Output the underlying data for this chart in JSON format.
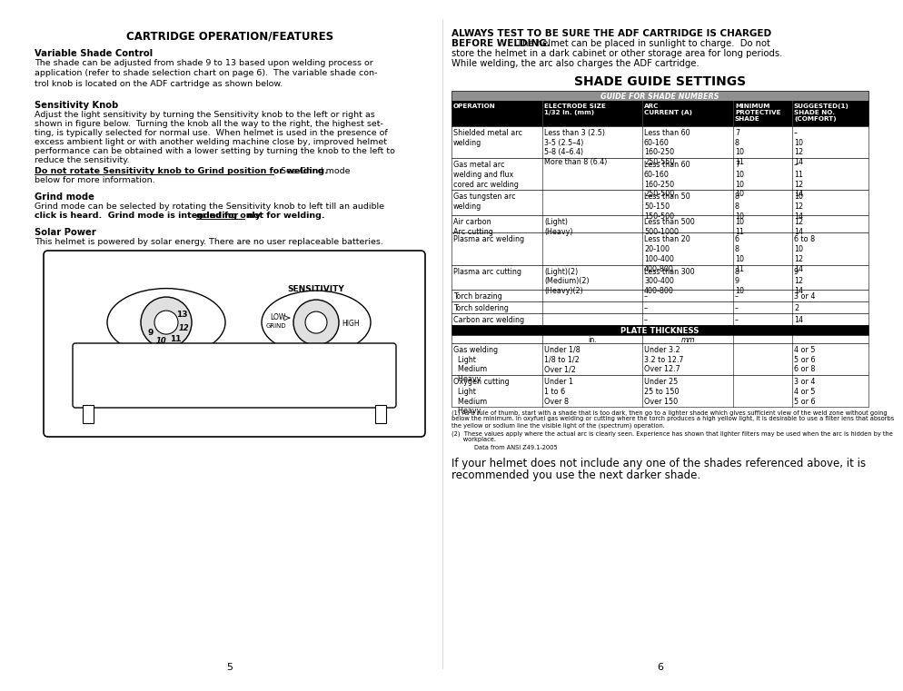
{
  "bg_color": "#ffffff",
  "left_title": "CARTRIDGE OPERATION/FEATURES",
  "sec1_heading": "Variable Shade Control",
  "sec1_body": "The shade can be adjusted from shade 9 to 13 based upon welding process or\napplication (refer to shade selection chart on page 6).  The variable shade con-\ntrol knob is located on the ADF cartridge as shown below.",
  "sec2_heading": "Sensitivity Knob",
  "sec2_line1": "Adjust the light sensitivity by turning the Sensitivity knob to the left or right as",
  "sec2_line2": "shown in figure below.  Turning the knob all the way to the right, the highest set-",
  "sec2_line3": "ting, is typically selected for normal use.  When helmet is used in the presence of",
  "sec2_line4": "excess ambient light or with another welding machine close by, improved helmet",
  "sec2_line5": "performance can be obtained with a lower setting by turning the knob to the left to",
  "sec2_line6": "reduce the sensitivity.",
  "sec2_warn_bold": "Do not rotate Sensitivity knob to Grind position for welding.",
  "sec2_warn_rest": "  See Grind mode",
  "sec2_warn_line2": "below for more information.",
  "sec3_heading": "Grind mode",
  "sec3_line1": "Grind mode can be selected by rotating the Sensitivity knob to left till an audible",
  "sec3_line2_pre": "click is heard.  Grind mode is intended for ",
  "sec3_line2_ul": "grinding only",
  "sec3_line2_post": " not for welding.",
  "sec4_heading": "Solar Power",
  "sec4_body": "This helmet is powered by solar energy. There are no user replaceable batteries.",
  "right_warn_bold": "ALWAYS TEST TO BE SURE THE ADF CARTRIDGE IS CHARGED",
  "right_warn_bold2": "BEFORE WELDING.",
  "right_warn_rest": " The helmet can be placed in sunlight to charge.  Do not\nstore the helmet in a dark cabinet or other storage area for long periods.\nWhile welding, the arc also charges the ADF cartridge.",
  "right_title": "SHADE GUIDE SETTINGS",
  "table_header_text": "GUIDE FOR SHADE NUMBERS",
  "table_col_headers": [
    "OPERATION",
    "ELECTRODE SIZE\n1/32 in. (mm)",
    "ARC\nCURRENT (A)",
    "MINIMUM\nPROTECTIVE\nSHADE",
    "SUGGESTED(1)\nSHADE NO.\n(COMFORT)"
  ],
  "table_rows": [
    [
      "Shielded metal arc\nwelding",
      "Less than 3 (2.5)\n3-5 (2.5–4)\n5-8 (4–6.4)\nMore than 8 (6.4)",
      "Less than 60\n60-160\n160-250\n250-550",
      "7\n8\n10\n11",
      "–\n10\n12\n14"
    ],
    [
      "Gas metal arc\nwelding and flux\ncored arc welding",
      "",
      "Less than 60\n60-160\n160-250\n250-500",
      "7\n10\n10\n10",
      "–\n11\n12\n14"
    ],
    [
      "Gas tungsten arc\nwelding",
      "",
      "Less than 50\n50-150\n150-500",
      "8\n8\n10",
      "10\n12\n14"
    ],
    [
      "Air carbon\nArc cutting",
      "(Light)\n(Heavy)",
      "Less than 500\n500-1000",
      "10\n11",
      "12\n14"
    ],
    [
      "Plasma arc welding",
      "",
      "Less than 20\n20-100\n100-400\n400-800",
      "6\n8\n10\n11",
      "6 to 8\n10\n12\n14"
    ],
    [
      "Plasma arc cutting",
      "(Light)(2)\n(Medium)(2)\n(Heavy)(2)",
      "Less than 300\n300-400\n400-800",
      "8\n9\n10",
      "9\n12\n14"
    ],
    [
      "Torch brazing",
      "",
      "–",
      "–",
      "3 or 4"
    ],
    [
      "Torch soldering",
      "",
      "–",
      "–",
      "2"
    ],
    [
      "Carbon arc welding",
      "",
      "–",
      "–",
      "14"
    ]
  ],
  "plate_thickness_header": "PLATE THICKNESS",
  "plate_rows": [
    [
      "Gas welding\n  Light\n  Medium\n  Heavy",
      "Under 1/8\n1/8 to 1/2\nOver 1/2",
      "Under 3.2\n3.2 to 12.7\nOver 12.7",
      "",
      "4 or 5\n5 or 6\n6 or 8"
    ],
    [
      "Oxygen cutting\n  Light\n  Medium\n  Heavy",
      "Under 1\n1 to 6\nOver 8",
      "Under 25\n25 to 150\nOver 150",
      "",
      "3 or 4\n4 or 5\n5 or 6"
    ]
  ],
  "footnote1a": "(1) As a rule of thumb, start with a shade that is too dark, then go to a lighter shade which gives sufficient view of the weld zone without going",
  "footnote1b": "below the minimum. In oxyfuel gas welding or cutting where the torch produces a high yellow light, it is desirable to use a filter lens that absorbs",
  "footnote1c": "the yellow or sodium line the visible light of the (spectrum) operation.",
  "footnote2a": "(2)  These values apply where the actual arc is clearly seen. Experience has shown that lighter filters may be used when the arc is hidden by the",
  "footnote2b": "      workplace.",
  "footnote3": "Data from ANSI Z49.1-2005",
  "closing_line1": "If your helmet does not include any one of the shades referenced above, it is",
  "closing_line2": "recommended you use the next darker shade.",
  "page_left": "5",
  "page_right": "6",
  "col_header_bg": "#808080",
  "col_subheader_bg": "#000000",
  "plate_header_bg": "#000000",
  "table_border": "#000000"
}
